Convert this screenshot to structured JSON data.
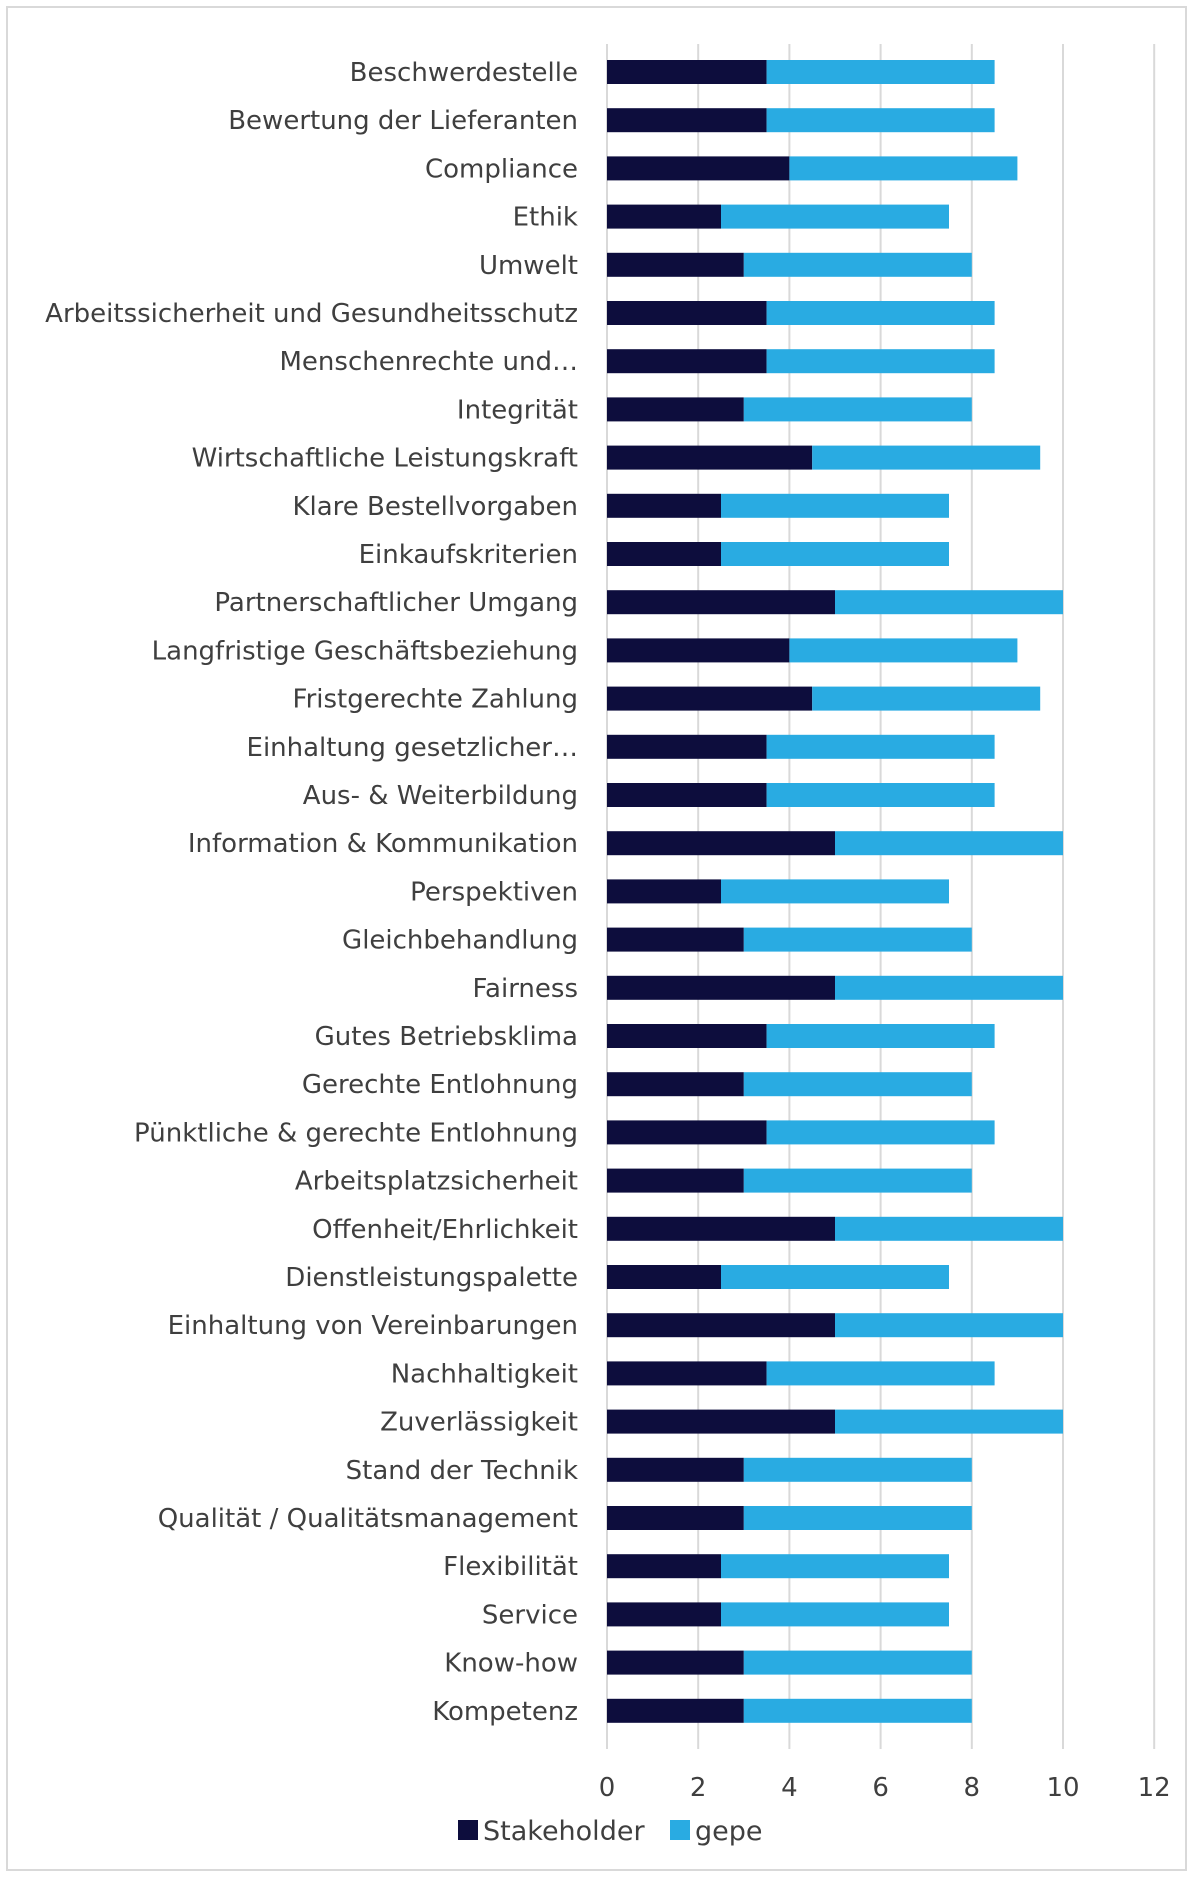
{
  "chart_data": {
    "type": "bar",
    "orientation": "horizontal",
    "stacked": true,
    "categories": [
      "Beschwerdestelle",
      "Bewertung der Lieferanten",
      "Compliance",
      "Ethik",
      "Umwelt",
      "Arbeitssicherheit und Gesundheitsschutz",
      "Menschenrechte und…",
      "Integrität",
      "Wirtschaftliche Leistungskraft",
      "Klare Bestellvorgaben",
      "Einkaufskriterien",
      "Partnerschaftlicher Umgang",
      "Langfristige Geschäftsbeziehung",
      "Fristgerechte Zahlung",
      "Einhaltung gesetzlicher…",
      "Aus- & Weiterbildung",
      "Information & Kommunikation",
      "Perspektiven",
      "Gleichbehandlung",
      "Fairness",
      "Gutes Betriebsklima",
      "Gerechte Entlohnung",
      "Pünktliche & gerechte Entlohnung",
      "Arbeitsplatzsicherheit",
      "Offenheit/Ehrlichkeit",
      "Dienstleistungspalette",
      "Einhaltung von Vereinbarungen",
      "Nachhaltigkeit",
      "Zuverlässigkeit",
      "Stand der Technik",
      "Qualität / Qualitätsmanagement",
      "Flexibilität",
      "Service",
      "Know-how",
      "Kompetenz"
    ],
    "series": [
      {
        "name": "Stakeholder",
        "color": "#0d0d3d",
        "values": [
          3.5,
          3.5,
          4,
          2.5,
          3,
          3.5,
          3.5,
          3,
          4.5,
          2.5,
          2.5,
          5,
          4,
          4.5,
          3.5,
          3.5,
          5,
          2.5,
          3,
          5,
          3.5,
          3,
          3.5,
          3,
          5,
          2.5,
          5,
          3.5,
          5,
          3,
          3,
          2.5,
          2.5,
          3,
          3
        ]
      },
      {
        "name": "gepe",
        "color": "#29abe2",
        "values": [
          5,
          5,
          5,
          5,
          5,
          5,
          5,
          5,
          5,
          5,
          5,
          5,
          5,
          5,
          5,
          5,
          5,
          5,
          5,
          5,
          5,
          5,
          5,
          5,
          5,
          5,
          5,
          5,
          5,
          5,
          5,
          5,
          5,
          5,
          5
        ]
      }
    ],
    "xlim": [
      0,
      12
    ],
    "xticks": [
      "0",
      "2",
      "4",
      "6",
      "8",
      "10",
      "12"
    ],
    "grid": "vertical",
    "legend": "bottom"
  }
}
